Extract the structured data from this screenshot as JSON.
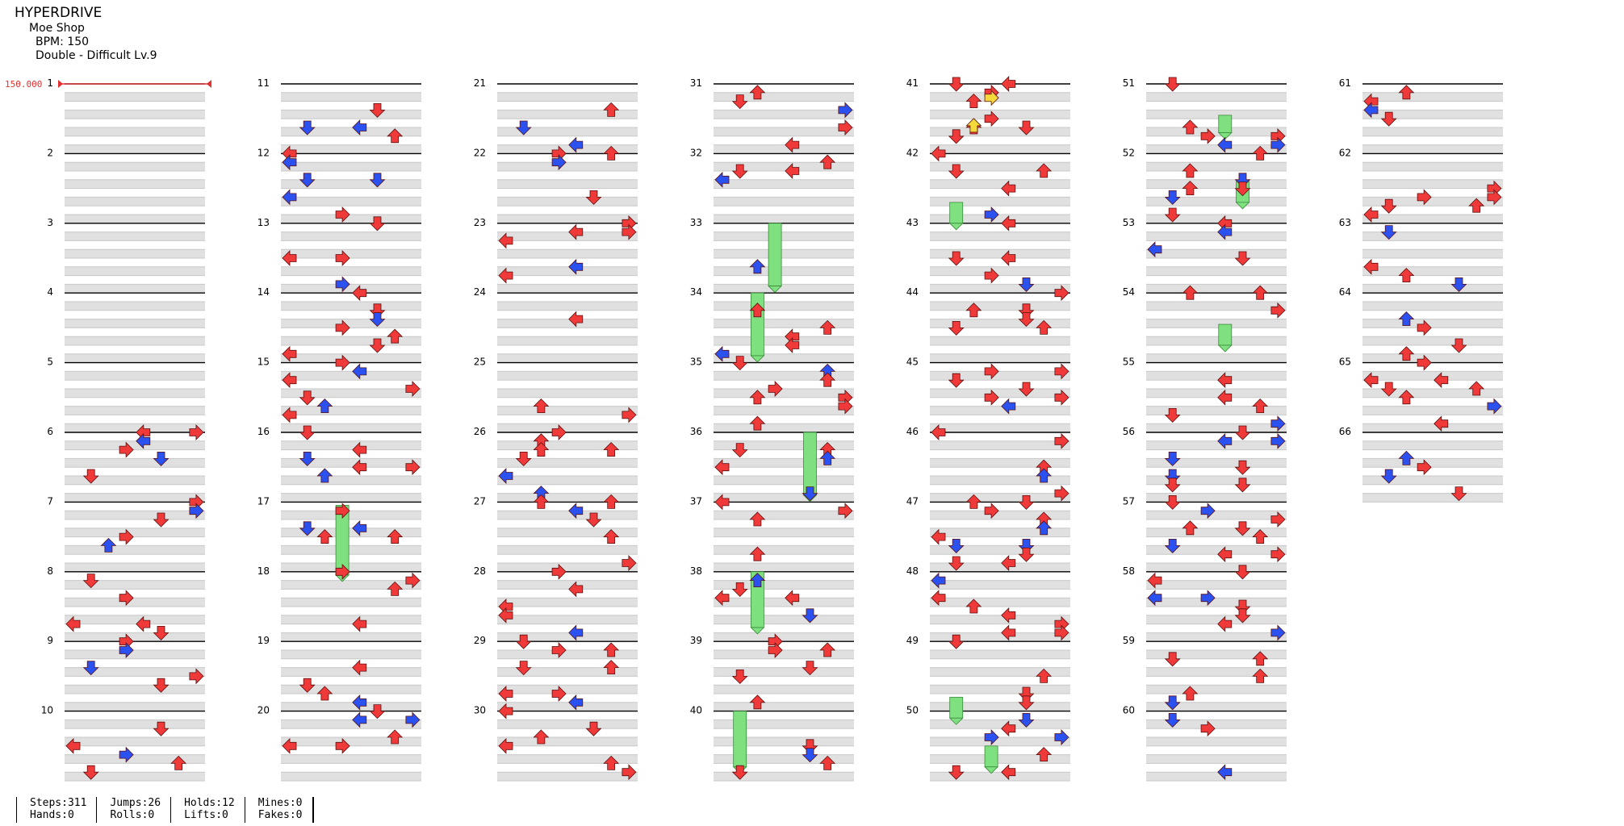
{
  "song": {
    "title": "HYPERDRIVE",
    "artist": "Moe Shop",
    "bpm_text": "BPM: 150",
    "difficulty_text": "Double - Difficult Lv.9",
    "bpm_marker": "150.000"
  },
  "measures": [
    "1",
    "2",
    "3",
    "4",
    "5",
    "6",
    "7",
    "8",
    "9",
    "10",
    "11",
    "12",
    "13",
    "14",
    "15",
    "16",
    "17",
    "18",
    "19",
    "20",
    "21",
    "22",
    "23",
    "24",
    "25",
    "26",
    "27",
    "28",
    "29",
    "30",
    "31",
    "32",
    "33",
    "34",
    "35",
    "36",
    "37",
    "38",
    "39",
    "40",
    "41",
    "42",
    "43",
    "44",
    "45",
    "46",
    "47",
    "48",
    "49",
    "50",
    "51",
    "52",
    "53",
    "54",
    "55",
    "56",
    "57",
    "58",
    "59",
    "60",
    "61",
    "62",
    "63",
    "64",
    "65",
    "66"
  ],
  "colors": {
    "quarter_note": "#f03a3a",
    "eighth_note": "#2b52f0",
    "sixteenth_note": "#f3d93a",
    "hold": "#7fe07f",
    "row_shade": "#e0e0e0",
    "bpm_marker": "#e23030"
  },
  "note_icons": [
    "arrow-left-icon",
    "arrow-down-icon",
    "arrow-up-icon",
    "arrow-right-icon"
  ],
  "stats": {
    "col1": [
      "Steps:311",
      "Hands:0"
    ],
    "col2": [
      "Jumps:26",
      "Rolls:0"
    ],
    "col3": [
      "Holds:12",
      "Lifts:0"
    ],
    "col4": [
      "Mines:0",
      "Fakes:0"
    ]
  }
}
